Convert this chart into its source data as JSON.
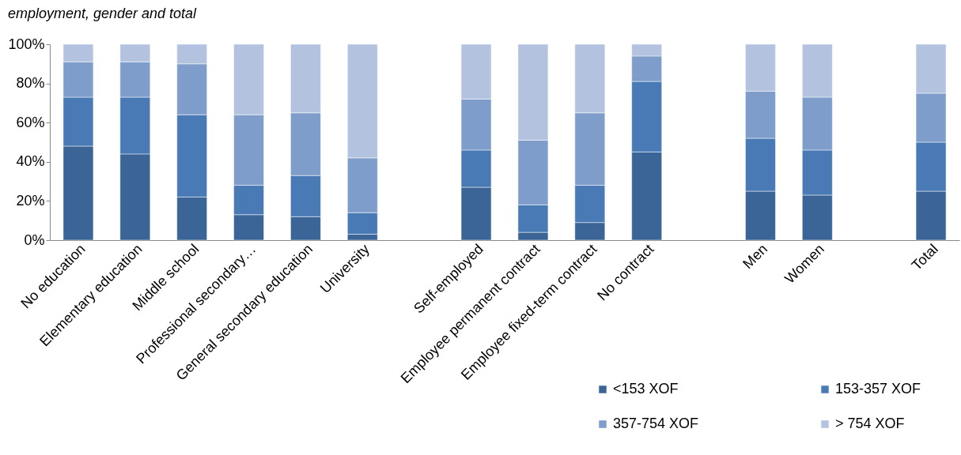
{
  "chart_data": {
    "type": "bar",
    "title": "employment, gender and total",
    "stacked": true,
    "legend": "bottom right",
    "grid": false,
    "categories": [
      "No education",
      "Elementary education",
      "Middle school",
      "Professional secondary…",
      "General secondary education",
      "University",
      null,
      "Self-employed",
      "Employee permanent contract",
      "Employee fixed-term contract",
      "No contract",
      null,
      "Men",
      "Women",
      null,
      "Total"
    ],
    "series": [
      {
        "name": "<153 XOF",
        "color": "#3b6497",
        "values": [
          48,
          44,
          22,
          13,
          12,
          3,
          null,
          27,
          4,
          9,
          45,
          null,
          25,
          23,
          null,
          25
        ]
      },
      {
        "name": "153-357 XOF",
        "color": "#4a7ab5",
        "values": [
          25,
          29,
          42,
          15,
          21,
          11,
          null,
          19,
          14,
          19,
          36,
          null,
          27,
          23,
          null,
          25
        ]
      },
      {
        "name": "357-754 XOF",
        "color": "#7f9dcb",
        "values": [
          18,
          18,
          26,
          36,
          32,
          28,
          null,
          26,
          33,
          37,
          13,
          null,
          24,
          27,
          null,
          25
        ]
      },
      {
        "name": "> 754 XOF",
        "color": "#b3c3df",
        "values": [
          9,
          9,
          10,
          36,
          35,
          58,
          null,
          28,
          49,
          35,
          6,
          null,
          24,
          27,
          null,
          25
        ]
      }
    ],
    "ylim": [
      0,
      100
    ],
    "yticks": [
      {
        "value": 0,
        "label": "0%"
      },
      {
        "value": 20,
        "label": "20%"
      },
      {
        "value": 40,
        "label": "40%"
      },
      {
        "value": 60,
        "label": "60%"
      },
      {
        "value": 80,
        "label": "80%"
      },
      {
        "value": 100,
        "label": "100%"
      }
    ]
  }
}
